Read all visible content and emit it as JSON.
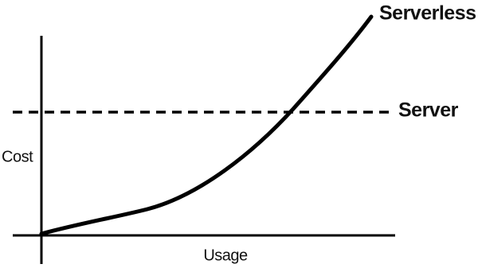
{
  "labels": {
    "serverless": "Serverless",
    "server": "Server",
    "y_axis": "Cost",
    "x_axis": "Usage"
  }
}
